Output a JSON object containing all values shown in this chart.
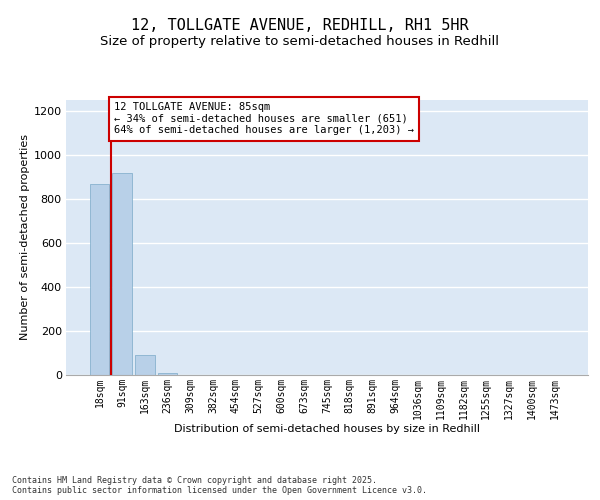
{
  "title": "12, TOLLGATE AVENUE, REDHILL, RH1 5HR",
  "subtitle": "Size of property relative to semi-detached houses in Redhill",
  "xlabel": "Distribution of semi-detached houses by size in Redhill",
  "ylabel": "Number of semi-detached properties",
  "categories": [
    "18sqm",
    "91sqm",
    "163sqm",
    "236sqm",
    "309sqm",
    "382sqm",
    "454sqm",
    "527sqm",
    "600sqm",
    "673sqm",
    "745sqm",
    "818sqm",
    "891sqm",
    "964sqm",
    "1036sqm",
    "1109sqm",
    "1182sqm",
    "1255sqm",
    "1327sqm",
    "1400sqm",
    "1473sqm"
  ],
  "values": [
    870,
    920,
    90,
    10,
    2,
    1,
    0,
    0,
    0,
    0,
    0,
    0,
    0,
    0,
    0,
    0,
    0,
    0,
    0,
    0,
    0
  ],
  "bar_color": "#b8d0e8",
  "bar_edge_color": "#7aaac8",
  "highlight_line_color": "#cc0000",
  "annotation_text": "12 TOLLGATE AVENUE: 85sqm\n← 34% of semi-detached houses are smaller (651)\n64% of semi-detached houses are larger (1,203) →",
  "annotation_box_color": "#cc0000",
  "ylim": [
    0,
    1250
  ],
  "yticks": [
    0,
    200,
    400,
    600,
    800,
    1000,
    1200
  ],
  "background_color": "#dce8f5",
  "footer_text": "Contains HM Land Registry data © Crown copyright and database right 2025.\nContains public sector information licensed under the Open Government Licence v3.0.",
  "title_fontsize": 11,
  "subtitle_fontsize": 9.5,
  "axis_fontsize": 8,
  "tick_fontsize": 7
}
